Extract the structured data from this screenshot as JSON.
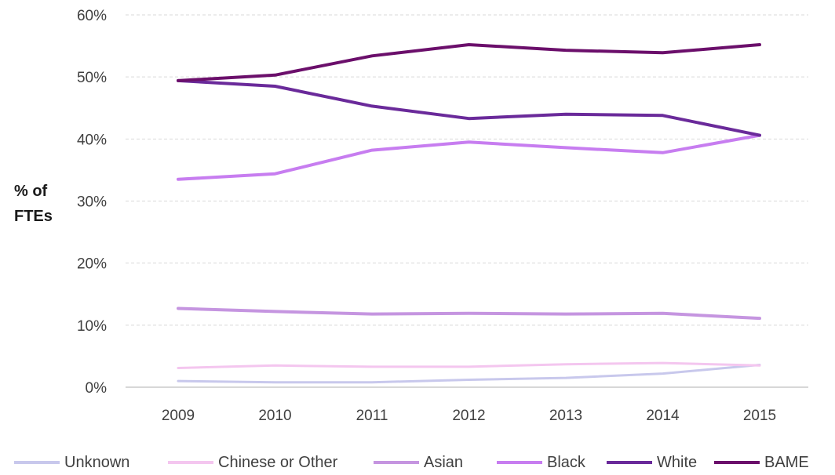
{
  "chart_data": {
    "type": "line",
    "title": "",
    "xlabel": "",
    "ylabel": "% of FTEs",
    "ylabel_lines": [
      "% of",
      "FTEs"
    ],
    "categories": [
      "2009",
      "2010",
      "2011",
      "2012",
      "2013",
      "2014",
      "2015"
    ],
    "ylim": [
      0,
      60
    ],
    "yticks": [
      0,
      10,
      20,
      30,
      40,
      50,
      60
    ],
    "ytick_labels": [
      "0%",
      "10%",
      "20%",
      "30%",
      "40%",
      "50%",
      "60%"
    ],
    "grid": true,
    "legend_position": "bottom",
    "series": [
      {
        "name": "Unknown",
        "color": "#c8c8ec",
        "values": [
          1.0,
          0.8,
          0.8,
          1.2,
          1.5,
          2.2,
          3.6
        ]
      },
      {
        "name": "Chinese or Other",
        "color": "#f4c6ef",
        "values": [
          3.1,
          3.5,
          3.3,
          3.3,
          3.7,
          3.9,
          3.5
        ]
      },
      {
        "name": "Asian",
        "color": "#c595e0",
        "values": [
          12.7,
          12.2,
          11.8,
          11.9,
          11.8,
          11.9,
          11.1
        ]
      },
      {
        "name": "Black",
        "color": "#c77df0",
        "values": [
          33.5,
          34.4,
          38.2,
          39.5,
          38.6,
          37.8,
          40.6
        ]
      },
      {
        "name": "White",
        "color": "#6a2a9a",
        "values": [
          49.4,
          48.5,
          45.3,
          43.3,
          44.0,
          43.8,
          40.6
        ]
      },
      {
        "name": "BAME",
        "color": "#6b0f6b",
        "values": [
          49.4,
          50.3,
          53.4,
          55.2,
          54.3,
          53.9,
          55.2
        ]
      }
    ]
  }
}
